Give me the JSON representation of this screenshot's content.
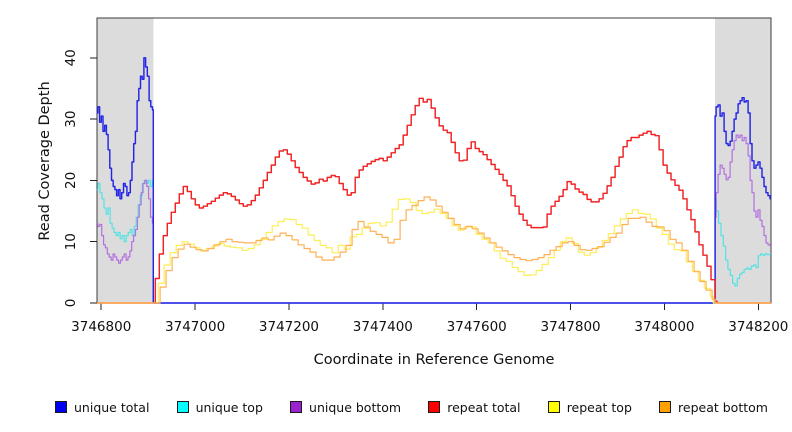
{
  "figure": {
    "x_axis_label": "Coordinate in Reference Genome",
    "y_axis_label": "Read Coverage Depth"
  },
  "legend": {
    "items": [
      {
        "label": "unique total",
        "color": "#0000f0"
      },
      {
        "label": "unique top",
        "color": "#00ffff"
      },
      {
        "label": "unique bottom",
        "color": "#9b22cf"
      },
      {
        "label": "repeat total",
        "color": "#ff0000"
      },
      {
        "label": "repeat top",
        "color": "#ffff00"
      },
      {
        "label": "repeat bottom",
        "color": "#ffa200"
      }
    ]
  },
  "chart_data": {
    "type": "line",
    "title": "",
    "xlabel": "Coordinate in Reference Genome",
    "ylabel": "Read Coverage Depth",
    "xlim": [
      3746791,
      3748227
    ],
    "ylim": [
      0,
      46.5
    ],
    "x_ticks": [
      3746800,
      3747000,
      3747200,
      3747400,
      3747600,
      3747800,
      3748000,
      3748200
    ],
    "y_ticks": [
      0,
      10,
      20,
      30,
      40
    ],
    "grid": false,
    "legend_position": "bottom",
    "masked_regions": [
      {
        "x0": 3746791,
        "x1": 3746911,
        "color": "#dcdcdc"
      },
      {
        "x0": 3748108,
        "x1": 3748227,
        "color": "#dcdcdc"
      }
    ],
    "draw_order": [
      1,
      2,
      0,
      3,
      4,
      5
    ],
    "series": [
      {
        "name": "unique-total",
        "label": "unique total",
        "line_color": "#2525e6",
        "segments": [
          {
            "x0": 3746791,
            "x1": 3746911,
            "v": [
              31,
              32,
              29.5,
              30.5,
              28,
              29,
              27.5,
              25,
              22,
              20,
              19,
              18.5,
              17.5,
              18.5,
              17,
              18,
              19.5,
              19,
              17.5,
              18,
              20,
              23,
              26,
              28,
              33,
              35,
              37,
              36.5,
              40,
              38.5,
              37,
              33,
              32,
              31.5
            ]
          },
          {
            "x0": 3746911,
            "x1": 3748108,
            "v": [
              0,
              0
            ]
          },
          {
            "x0": 3748108,
            "x1": 3748227,
            "v": [
              30.5,
              32,
              32.3,
              30.5,
              31,
              28,
              26,
              25.7,
              26.4,
              28,
              30,
              31,
              32.5,
              33,
              33.5,
              32.8,
              33,
              31,
              26,
              23.2,
              22,
              22.5,
              23,
              22,
              20.5,
              19,
              18,
              17.5,
              17
            ]
          }
        ]
      },
      {
        "name": "unique-top",
        "label": "unique top",
        "line_color": "#55e2e2",
        "segments": [
          {
            "x0": 3746791,
            "x1": 3746911,
            "v": [
              18.5,
              19.5,
              18,
              17,
              15.5,
              14.5,
              15.5,
              13,
              12.2,
              11.5,
              11,
              11.5,
              10.5,
              11,
              10,
              11,
              11.5,
              12,
              11,
              12.5,
              14,
              16,
              17.5,
              19.5,
              20,
              19.5,
              20,
              19,
              20
            ]
          },
          {
            "x0": 3746911,
            "x1": 3748108,
            "v": [
              0,
              0
            ]
          },
          {
            "x0": 3748108,
            "x1": 3748227,
            "v": [
              17,
              15,
              13,
              11,
              9.3,
              7,
              5.5,
              4.5,
              3.2,
              2.8,
              4,
              4.7,
              5,
              5.5,
              5.7,
              5.5,
              6,
              6.2,
              5.8,
              7.7,
              8,
              7.8,
              8,
              7.9,
              8
            ]
          }
        ]
      },
      {
        "name": "unique-bottom",
        "label": "unique bottom",
        "line_color": "#b46fe0",
        "segments": [
          {
            "x0": 3746791,
            "x1": 3746911,
            "v": [
              13,
              12.5,
              12.8,
              11,
              9.5,
              9,
              8,
              7.5,
              7,
              8,
              7.5,
              7,
              6.5,
              7,
              7.5,
              8,
              7,
              7.5,
              8.5,
              10,
              11,
              12,
              14,
              16,
              18,
              19.5,
              20,
              19,
              17,
              14,
              13
            ]
          },
          {
            "x0": 3746911,
            "x1": 3748108,
            "v": [
              0,
              0
            ]
          },
          {
            "x0": 3748108,
            "x1": 3748227,
            "v": [
              14,
              18,
              21,
              22.5,
              22,
              21,
              20.1,
              20.5,
              23,
              25,
              26.5,
              27.4,
              27,
              27.4,
              26.5,
              27,
              26,
              24,
              20,
              18,
              15,
              14,
              15.2,
              13.5,
              12.5,
              11,
              9.8,
              9.5,
              9.3
            ]
          }
        ]
      },
      {
        "name": "repeat-total",
        "label": "repeat total",
        "line_color": "#f02222",
        "segments": [
          {
            "x0": 3746791,
            "x1": 3746911,
            "v": [
              0,
              0
            ]
          },
          {
            "x0": 3746911,
            "x1": 3748112,
            "v": [
              0,
              4,
              8,
              11,
              13,
              14.8,
              16.3,
              17.8,
              19,
              18.2,
              17,
              16,
              15.5,
              15.8,
              16.2,
              16.6,
              17.1,
              17.6,
              18,
              17.8,
              17.4,
              16.8,
              16.2,
              15.8,
              16,
              16.7,
              17.6,
              18.8,
              20,
              21.3,
              22.5,
              23.8,
              24.8,
              25,
              24.3,
              23.2,
              22.1,
              21.3,
              20.5,
              19.9,
              19.4,
              19.6,
              20.2,
              19.9,
              20.5,
              20.8,
              20.6,
              19.5,
              18.5,
              17.6,
              18,
              20.5,
              21.7,
              22.3,
              22.7,
              23.1,
              23.4,
              23.6,
              23.2,
              23.8,
              24.5,
              25.2,
              25.8,
              27.4,
              29,
              30.7,
              32.2,
              33.4,
              32.8,
              33.2,
              31.8,
              30.2,
              28.9,
              28.2,
              27.8,
              26.2,
              24.5,
              23.2,
              23.3,
              25.2,
              26.3,
              25.2,
              24.7,
              24.2,
              23.4,
              22.6,
              21.8,
              21,
              20,
              19.1,
              17.5,
              15.8,
              14.5,
              13.5,
              12.7,
              12.3,
              12.3,
              12.3,
              12.4,
              14.5,
              15.8,
              16.6,
              17.4,
              18.5,
              19.8,
              19.4,
              18.6,
              18.1,
              17.7,
              16.9,
              16.5,
              16.5,
              17,
              17.9,
              19.1,
              20.5,
              22.3,
              23.8,
              25.5,
              26.5,
              27,
              27,
              27.4,
              27.7,
              28,
              27.5,
              27.3,
              25,
              22.5,
              21.2,
              20.1,
              19.2,
              18.4,
              17,
              15.2,
              13.6,
              11.6,
              9.5,
              7.8,
              6,
              3.8,
              0.3
            ]
          },
          {
            "x0": 3748112,
            "x1": 3748227,
            "v": [
              0,
              0
            ]
          }
        ]
      },
      {
        "name": "repeat-top",
        "label": "repeat top",
        "line_color": "#fcee55",
        "segments": [
          {
            "x0": 3746791,
            "x1": 3746915,
            "v": [
              0,
              0
            ]
          },
          {
            "x0": 3746915,
            "x1": 3748104,
            "v": [
              0,
              3.2,
              6.2,
              8.2,
              9.4,
              10,
              9.6,
              9,
              8.5,
              8.9,
              9.3,
              9.7,
              9.3,
              9.1,
              9,
              8.6,
              8.9,
              9.5,
              10.4,
              11.5,
              12.6,
              13.3,
              13.7,
              13.6,
              12.8,
              12.2,
              11.1,
              10.2,
              9.4,
              9,
              8.2,
              9.4,
              8.8,
              10.8,
              11.2,
              12.2,
              13,
              13.1,
              12.6,
              13.2,
              15.3,
              16.9,
              17,
              16.4,
              15.1,
              14.6,
              14.8,
              15.3,
              14.6,
              13.8,
              12.6,
              11.9,
              12.4,
              12.4,
              11.2,
              10.4,
              9.8,
              8.5,
              7.3,
              6.8,
              5.8,
              5.1,
              4.5,
              4.6,
              5.3,
              6.3,
              7.4,
              8.6,
              10,
              10.6,
              9.7,
              8.3,
              7.8,
              8.2,
              9.1,
              10.2,
              11.3,
              12.6,
              13.7,
              14.6,
              15.2,
              14.6,
              14.5,
              13.7,
              12.2,
              11.2,
              9.6,
              8.7,
              8.5,
              6.7,
              5.2,
              3.7,
              2.4,
              1.1
            ]
          },
          {
            "x0": 3748104,
            "x1": 3748227,
            "v": [
              0,
              0
            ]
          }
        ]
      },
      {
        "name": "repeat-bottom",
        "label": "repeat bottom",
        "line_color": "#ffb054",
        "segments": [
          {
            "x0": 3746791,
            "x1": 3746919,
            "v": [
              0,
              0
            ]
          },
          {
            "x0": 3746919,
            "x1": 3748108,
            "v": [
              0,
              2.6,
              5.3,
              7.4,
              8.8,
              9.6,
              9.1,
              8.7,
              8.5,
              8.9,
              9.5,
              10,
              10.4,
              10,
              9.9,
              9.8,
              9.8,
              10.2,
              10.6,
              10.3,
              10.9,
              11.4,
              11,
              10.3,
              9.5,
              8.9,
              8.3,
              7.5,
              7,
              7,
              7.5,
              8.3,
              9.4,
              12,
              13.3,
              12.4,
              11.7,
              11.2,
              10.7,
              9.8,
              10.4,
              13.5,
              15.2,
              15.9,
              16.7,
              17.3,
              16.8,
              15.8,
              14.8,
              13.8,
              12.8,
              12.1,
              12.5,
              12.1,
              11.4,
              10.6,
              9.8,
              9.1,
              8.5,
              7.9,
              7.4,
              7.1,
              6.9,
              7.1,
              7.4,
              7.9,
              8.6,
              9.2,
              9.8,
              10,
              9.4,
              8.7,
              8.6,
              8.9,
              9.2,
              9.9,
              10.7,
              11.4,
              12.8,
              13.8,
              13.8,
              14,
              13.2,
              12.5,
              12.4,
              11.8,
              10.4,
              9.8,
              8.6,
              6.8,
              5.1,
              3.5,
              2.1,
              0.6
            ]
          },
          {
            "x0": 3748108,
            "x1": 3748227,
            "v": [
              0,
              0
            ]
          }
        ]
      }
    ]
  }
}
